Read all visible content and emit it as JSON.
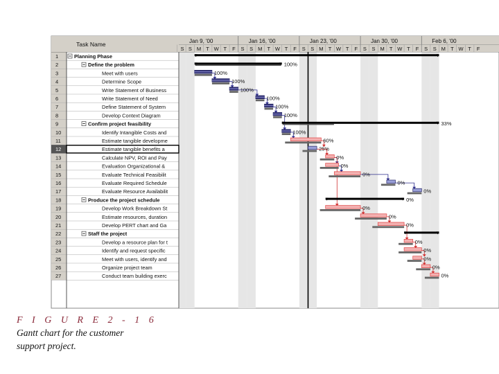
{
  "figure": {
    "label": "F I G U R E  2 - 1 6",
    "caption_line1": "Gantt chart for the customer",
    "caption_line2": "support project."
  },
  "chart_data": {
    "type": "gantt",
    "column_header": "Task Name",
    "weeks": [
      "Jan 9, '00",
      "Jan 16, '00",
      "Jan 23, '00",
      "Jan 30, '00",
      "Feb 6, '00"
    ],
    "day_letters": [
      "S",
      "S",
      "M",
      "T",
      "W",
      "T",
      "F"
    ],
    "today_day": 15,
    "tasks": [
      {
        "id": "1",
        "name": "Planning Phase",
        "level": 0,
        "summary": true,
        "start": 2,
        "end": 30,
        "pct": ""
      },
      {
        "id": "2",
        "name": "Define the problem",
        "level": 1,
        "summary": true,
        "start": 2,
        "end": 12,
        "pct": "100%"
      },
      {
        "id": "3",
        "name": "Meet with users",
        "level": 2,
        "start": 2,
        "end": 4,
        "pct": "100%"
      },
      {
        "id": "4",
        "name": "Determine Scope",
        "level": 2,
        "start": 4,
        "end": 6,
        "pct": "100%"
      },
      {
        "id": "5",
        "name": "Write Statement of Business",
        "level": 2,
        "start": 6,
        "end": 7,
        "pct": "100%"
      },
      {
        "id": "6",
        "name": "Write Statement of Need",
        "level": 2,
        "start": 9,
        "end": 10,
        "pct": "100%"
      },
      {
        "id": "7",
        "name": "Define Statement of System",
        "level": 2,
        "start": 10,
        "end": 11,
        "pct": "100%"
      },
      {
        "id": "8",
        "name": "Develop Context Diagram",
        "level": 2,
        "start": 11,
        "end": 12,
        "pct": "100%"
      },
      {
        "id": "9",
        "name": "Confirm project feasibility",
        "level": 1,
        "summary": true,
        "start": 12,
        "end": 30,
        "pct": "33%"
      },
      {
        "id": "10",
        "name": "Identify Intangible Costs and",
        "level": 2,
        "start": 12,
        "end": 13,
        "pct": "100%"
      },
      {
        "id": "11",
        "name": "Estimate tangible developme",
        "level": 2,
        "start": 13,
        "end": 16.5,
        "pct": "60%"
      },
      {
        "id": "12",
        "name": "Estimate tangible benefits a",
        "level": 2,
        "start": 15,
        "end": 16,
        "pct": "25%"
      },
      {
        "id": "13",
        "name": "Calculate NPV, ROI and Pay",
        "level": 2,
        "start": 17,
        "end": 18,
        "pct": "0%"
      },
      {
        "id": "14",
        "name": "Evaluation Organizational &",
        "level": 2,
        "start": 17,
        "end": 18.5,
        "pct": "0%"
      },
      {
        "id": "15",
        "name": "Evaluate Technical Feasibilit",
        "level": 2,
        "start": 18,
        "end": 21,
        "pct": "0%"
      },
      {
        "id": "16",
        "name": "Evaluate Required Schedule",
        "level": 2,
        "start": 24,
        "end": 25,
        "pct": "0%"
      },
      {
        "id": "17",
        "name": "Evaluate Resource Availabilit",
        "level": 2,
        "start": 27,
        "end": 28,
        "pct": "0%"
      },
      {
        "id": "18",
        "name": "Produce the project schedule",
        "level": 1,
        "summary": true,
        "start": 17,
        "end": 26,
        "pct": "0%"
      },
      {
        "id": "19",
        "name": "Develop Work Breakdown St",
        "level": 2,
        "start": 17,
        "end": 21,
        "pct": "0%"
      },
      {
        "id": "20",
        "name": "Estimate resources, duration",
        "level": 2,
        "start": 21,
        "end": 24,
        "pct": "0%"
      },
      {
        "id": "21",
        "name": "Develop PERT chart and Ga",
        "level": 2,
        "start": 23,
        "end": 26,
        "pct": "0%"
      },
      {
        "id": "22",
        "name": "Staff the project",
        "level": 1,
        "summary": true,
        "start": 26,
        "end": 30,
        "pct": ""
      },
      {
        "id": "23",
        "name": "Develop a resource plan for t",
        "level": 2,
        "start": 26,
        "end": 27,
        "pct": "0%"
      },
      {
        "id": "24",
        "name": "Identify and request specific",
        "level": 2,
        "start": 26,
        "end": 28,
        "pct": "0%"
      },
      {
        "id": "25",
        "name": "Meet with users, identify and",
        "level": 2,
        "start": 27,
        "end": 28,
        "pct": "0%"
      },
      {
        "id": "26",
        "name": "Organize project team",
        "level": 2,
        "start": 28,
        "end": 29,
        "pct": "0%"
      },
      {
        "id": "27",
        "name": "Conduct team building exerc",
        "level": 2,
        "start": 29,
        "end": 30,
        "pct": "0%"
      }
    ],
    "links": [
      [
        3,
        4
      ],
      [
        4,
        5
      ],
      [
        5,
        6
      ],
      [
        6,
        7
      ],
      [
        7,
        8
      ],
      [
        8,
        10
      ],
      [
        10,
        11
      ],
      [
        11,
        12
      ],
      [
        12,
        13
      ],
      [
        13,
        14
      ],
      [
        14,
        15
      ],
      [
        15,
        16
      ],
      [
        16,
        17
      ],
      [
        13,
        19
      ],
      [
        19,
        20
      ],
      [
        20,
        21
      ],
      [
        21,
        23
      ],
      [
        23,
        24
      ],
      [
        24,
        25
      ],
      [
        25,
        26
      ],
      [
        26,
        27
      ]
    ],
    "critical_links": [
      [
        11,
        12
      ],
      [
        12,
        13
      ],
      [
        13,
        19
      ],
      [
        19,
        20
      ],
      [
        20,
        21
      ],
      [
        21,
        23
      ],
      [
        23,
        24
      ],
      [
        24,
        25
      ],
      [
        25,
        26
      ],
      [
        26,
        27
      ]
    ],
    "colors": {
      "task_bar": "#2b2b6b",
      "critical_bar": "#e04545",
      "baseline": "#666666",
      "summary": "#000000",
      "link": "#2b2b8b",
      "critical_link": "#d03030",
      "weekend_shade": "#e6e6e6",
      "grid_header": "#d4d0c8",
      "selected_row": "#555555"
    }
  }
}
